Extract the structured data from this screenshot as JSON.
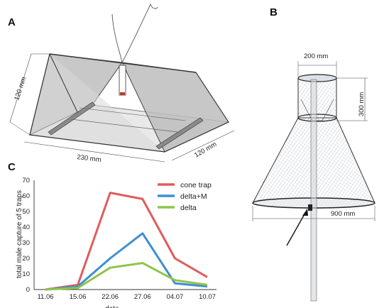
{
  "panels": {
    "a": {
      "letter": "A",
      "dims": {
        "height": "120 mm",
        "length": "230 mm",
        "depth": "120 mm"
      }
    },
    "b": {
      "letter": "B",
      "dims": {
        "top_width": "200 mm",
        "top_height": "300 mm",
        "base_width": "900 mm"
      }
    },
    "c": {
      "letter": "C"
    }
  },
  "colors": {
    "cone_trap": "#e05c5c",
    "delta_m": "#3d8fd1",
    "delta": "#8fc44a"
  },
  "chart_data": {
    "type": "line",
    "categories": [
      "11.06",
      "15.06",
      "22.06",
      "27.06",
      "04.07",
      "10.07"
    ],
    "series": [
      {
        "name": "cone trap",
        "values": [
          0,
          3,
          62,
          58,
          20,
          8
        ]
      },
      {
        "name": "delta+M",
        "values": [
          0,
          2,
          20,
          36,
          4,
          2
        ]
      },
      {
        "name": "delta",
        "values": [
          0,
          1,
          14,
          17,
          6,
          3
        ]
      }
    ],
    "title": "",
    "xlabel": "date",
    "ylabel": "total male capture of 5 traps",
    "ylim": [
      0,
      70
    ],
    "yticks": [
      "0",
      "10",
      "20",
      "30",
      "40",
      "50",
      "60",
      "70"
    ],
    "grid": false,
    "legend_position": "top-right"
  }
}
